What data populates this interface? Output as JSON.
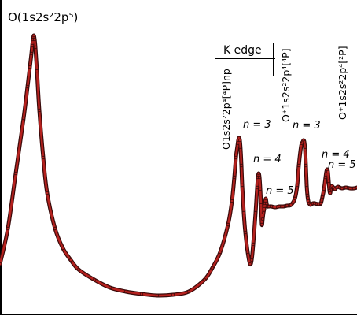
{
  "chart_data": {
    "type": "line",
    "title": "",
    "xlabel": "",
    "ylabel": "",
    "series": [
      {
        "color": "#b5211e",
        "edge_color": "#3a0a0a",
        "x": [
          0,
          10,
          20,
          30,
          35,
          38,
          40,
          41,
          42,
          43,
          44,
          45,
          47,
          50,
          55,
          60,
          70,
          80,
          90,
          100,
          120,
          140,
          160,
          180,
          200,
          220,
          240,
          260,
          270,
          280,
          290,
          295,
          298,
          300,
          302,
          303,
          304,
          305,
          306,
          307,
          308,
          310,
          312,
          315,
          318,
          320,
          322,
          325,
          327,
          328,
          329,
          330,
          331,
          332,
          333,
          334,
          335,
          336,
          337,
          338,
          339,
          340,
          342,
          345,
          350,
          355,
          360,
          365,
          370,
          375,
          378,
          380,
          383,
          385,
          386,
          387,
          388,
          389,
          390,
          391,
          392,
          393,
          395,
          398,
          400,
          405,
          408,
          410,
          412,
          414,
          415,
          416,
          417,
          418,
          419,
          420,
          421,
          422,
          424,
          426,
          428,
          430,
          432,
          435,
          440,
          445,
          450,
          454
        ],
        "y": [
          335,
          290,
          220,
          150,
          110,
          85,
          68,
          58,
          50,
          45,
          50,
          60,
          90,
          140,
          200,
          245,
          290,
          315,
          330,
          342,
          355,
          365,
          370,
          373,
          375,
          374,
          370,
          355,
          340,
          320,
          285,
          255,
          225,
          200,
          185,
          178,
          175,
          178,
          190,
          210,
          235,
          270,
          295,
          320,
          335,
          330,
          310,
          270,
          238,
          225,
          220,
          225,
          240,
          260,
          285,
          278,
          270,
          265,
          258,
          252,
          258,
          262,
          262,
          262,
          263,
          262,
          262,
          261,
          260,
          252,
          235,
          210,
          185,
          180,
          178,
          180,
          190,
          210,
          235,
          248,
          255,
          258,
          260,
          258,
          258,
          259,
          258,
          250,
          240,
          225,
          218,
          215,
          218,
          230,
          242,
          245,
          238,
          236,
          238,
          240,
          238,
          237,
          238,
          239,
          238,
          239,
          239,
          238
        ]
      }
    ],
    "annotations": [
      "O(1s2s²2p⁵)",
      "K edge",
      "O1s2s²2p⁴[⁴P]np",
      "O⁺1s2s²2p⁴[⁴P]",
      "O⁺1s2s²2p⁴[²P]",
      "n = 3",
      "n = 4",
      "n = 5",
      "n = 3",
      "n = 4",
      "n = 5"
    ],
    "grid": false,
    "legend": "none"
  },
  "labels": {
    "peak_main": "O(1s2s²2p⁵)",
    "k_edge": "K edge",
    "series_np": "O1s2s²2p⁴[⁴P]np",
    "ion_4p": "O⁺1s2s²2p⁴[⁴P]",
    "ion_2p": "O⁺1s2s²2p⁴[²P]",
    "n3_a": "n = 3",
    "n4_a": "n = 4",
    "n5_a": "n = 5",
    "n3_b": "n = 3",
    "n4_b": "n = 4",
    "n5_b": "n = 5"
  }
}
